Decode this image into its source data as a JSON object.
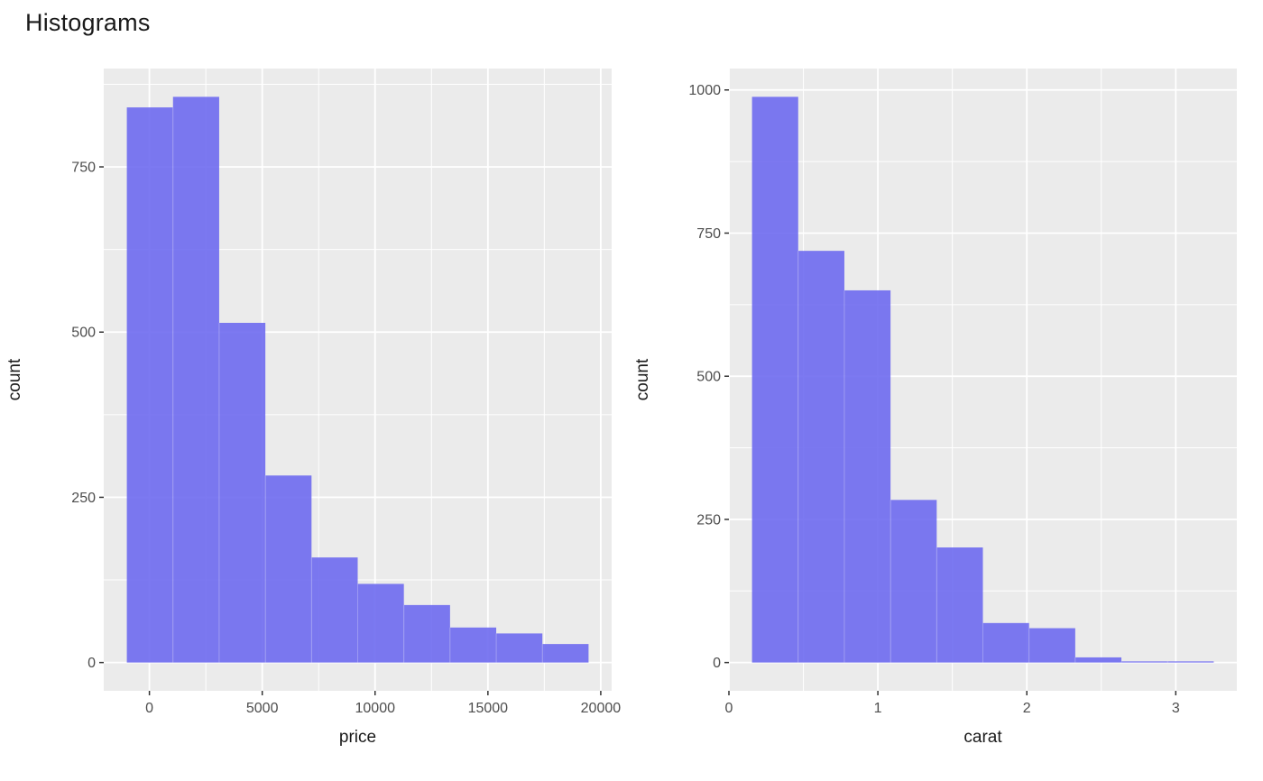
{
  "title": "Histograms",
  "style": {
    "background": "#FFFFFF",
    "panel_bg": "#EBEBEB",
    "grid_color": "#FFFFFF",
    "bar_fill": "rgba(110,106,240,0.9)",
    "bar_fill_hex": "#7A77EF",
    "bar_seam_color": "rgba(255,255,255,0.25)",
    "tick_mark_color": "#333333",
    "tick_label_color": "#4D4D4D",
    "text_color": "#1A1A1A"
  },
  "chart_data": [
    {
      "type": "histogram",
      "xlabel": "price",
      "ylabel": "count",
      "bin_start": -1000,
      "binwidth": 2046,
      "counts": [
        840,
        856,
        514,
        283,
        159,
        119,
        87,
        53,
        44,
        28
      ],
      "x_ticks": [
        0,
        5000,
        10000,
        15000,
        20000
      ],
      "x_tick_labels": [
        "0",
        "5000",
        "10000",
        "15000",
        "20000"
      ],
      "y_ticks": [
        0,
        250,
        500,
        750
      ],
      "y_tick_labels": [
        "0",
        "250",
        "500",
        "750"
      ],
      "xlim": [
        -2023,
        20487
      ],
      "ylim": [
        -43,
        899
      ],
      "grid": true,
      "legend": "none"
    },
    {
      "type": "histogram",
      "xlabel": "carat",
      "ylabel": "count",
      "bin_start": 0.155,
      "binwidth": 0.31,
      "counts": [
        988,
        719,
        650,
        284,
        201,
        69,
        60,
        9,
        2,
        2
      ],
      "x_ticks": [
        0,
        1,
        2,
        3
      ],
      "x_tick_labels": [
        "0",
        "1",
        "2",
        "3"
      ],
      "y_ticks": [
        0,
        250,
        500,
        750,
        1000
      ],
      "y_tick_labels": [
        "0",
        "250",
        "500",
        "750",
        "1000"
      ],
      "xlim": [
        -0.001,
        3.41
      ],
      "ylim": [
        -49,
        1037
      ],
      "grid": true,
      "legend": "none"
    }
  ]
}
